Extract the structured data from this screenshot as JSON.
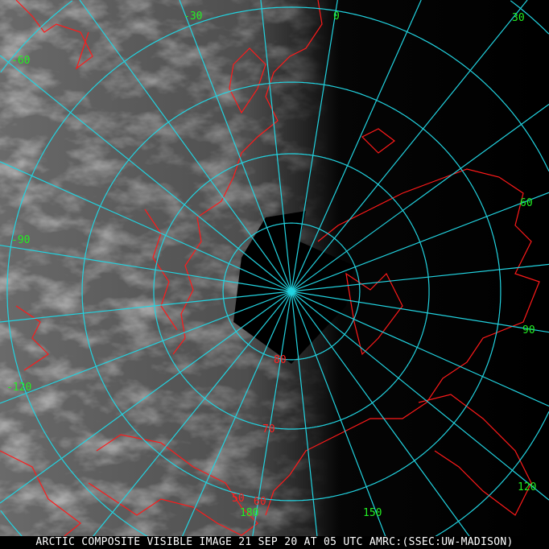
{
  "caption": "ARCTIC COMPOSITE VISIBLE IMAGE 21 SEP 20 AT 05 UTC AMRC:(SSEC:UW-MADISON)",
  "projection": "polar stereographic, north pole",
  "colors": {
    "graticule": "#22d3e0",
    "coastline": "#ff1a1a",
    "longitude_label": "#22ee22",
    "latitude_label": "#ff2222",
    "caption": "#ffffff"
  },
  "latitude_circles": [
    80,
    70,
    60,
    50,
    40
  ],
  "latitude_labels": [
    "80",
    "70",
    "60",
    "50"
  ],
  "longitude_spacing_deg": 15,
  "longitude_labels": [
    "-30",
    "0",
    "30",
    "60",
    "90",
    "120",
    "150",
    "180",
    "-60",
    "-90",
    "-120"
  ]
}
